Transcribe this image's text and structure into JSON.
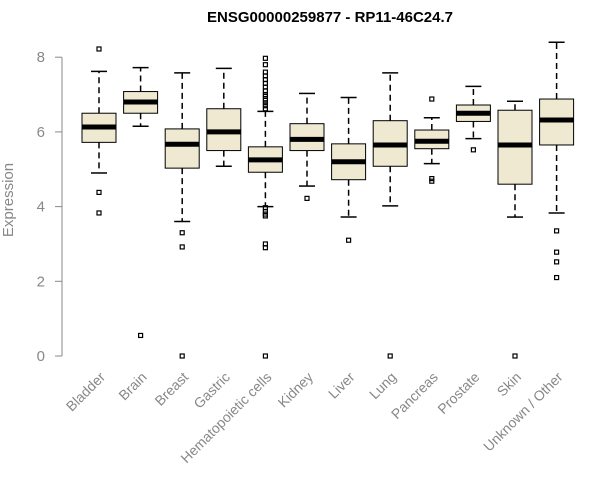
{
  "chart_data": {
    "type": "boxplot",
    "title": "ENSG00000259877 - RP11-46C24.7",
    "xlabel": "",
    "ylabel": "Expression",
    "ylim": [
      0,
      8.4
    ],
    "yticks": [
      0,
      2,
      4,
      6,
      8
    ],
    "grid": false,
    "legend": "none",
    "colors": {
      "box_fill": "#efe9d2",
      "line": "#000000",
      "axis": "#888888",
      "title": "#000000"
    },
    "categories": [
      "Bladder",
      "Brain",
      "Breast",
      "Gastric",
      "Hematopoietic cells",
      "Kidney",
      "Liver",
      "Lung",
      "Pancreas",
      "Prostate",
      "Skin",
      "Unknown / Other"
    ],
    "boxes": [
      {
        "category": "Bladder",
        "whisker_low": 4.9,
        "q1": 5.72,
        "median": 6.13,
        "q3": 6.5,
        "whisker_high": 7.62,
        "outliers": [
          8.22,
          4.38,
          3.83
        ]
      },
      {
        "category": "Brain",
        "whisker_low": 6.15,
        "q1": 6.5,
        "median": 6.8,
        "q3": 7.08,
        "whisker_high": 7.72,
        "outliers": [
          0.55
        ]
      },
      {
        "category": "Breast",
        "whisker_low": 3.6,
        "q1": 5.03,
        "median": 5.67,
        "q3": 6.08,
        "whisker_high": 7.58,
        "outliers": [
          3.3,
          2.92,
          0.0
        ]
      },
      {
        "category": "Gastric",
        "whisker_low": 5.08,
        "q1": 5.5,
        "median": 6.0,
        "q3": 6.62,
        "whisker_high": 7.7,
        "outliers": []
      },
      {
        "category": "Hematopoietic cells",
        "whisker_low": 4.0,
        "q1": 4.92,
        "median": 5.25,
        "q3": 5.6,
        "whisker_high": 6.55,
        "outliers": [
          7.97,
          7.8,
          7.6,
          7.5,
          7.4,
          7.3,
          7.2,
          7.1,
          7.0,
          6.95,
          6.85,
          6.78,
          6.7,
          6.62,
          3.97,
          3.87,
          3.8,
          3.75,
          3.0,
          2.9,
          0.0
        ]
      },
      {
        "category": "Kidney",
        "whisker_low": 4.55,
        "q1": 5.5,
        "median": 5.8,
        "q3": 6.22,
        "whisker_high": 7.03,
        "outliers": [
          4.22
        ]
      },
      {
        "category": "Liver",
        "whisker_low": 3.72,
        "q1": 4.72,
        "median": 5.2,
        "q3": 5.68,
        "whisker_high": 6.92,
        "outliers": [
          3.1
        ]
      },
      {
        "category": "Lung",
        "whisker_low": 4.02,
        "q1": 5.08,
        "median": 5.65,
        "q3": 6.3,
        "whisker_high": 7.58,
        "outliers": [
          0.0
        ]
      },
      {
        "category": "Pancreas",
        "whisker_low": 5.15,
        "q1": 5.55,
        "median": 5.75,
        "q3": 6.05,
        "whisker_high": 6.38,
        "outliers": [
          6.88,
          4.75,
          4.68
        ]
      },
      {
        "category": "Prostate",
        "whisker_low": 5.82,
        "q1": 6.28,
        "median": 6.5,
        "q3": 6.72,
        "whisker_high": 7.22,
        "outliers": [
          5.52
        ]
      },
      {
        "category": "Skin",
        "whisker_low": 3.72,
        "q1": 4.6,
        "median": 5.65,
        "q3": 6.58,
        "whisker_high": 6.82,
        "outliers": [
          0.0
        ]
      },
      {
        "category": "Unknown / Other",
        "whisker_low": 3.83,
        "q1": 5.65,
        "median": 6.32,
        "q3": 6.88,
        "whisker_high": 8.4,
        "outliers": [
          3.35,
          2.78,
          2.52,
          2.1
        ]
      }
    ]
  }
}
